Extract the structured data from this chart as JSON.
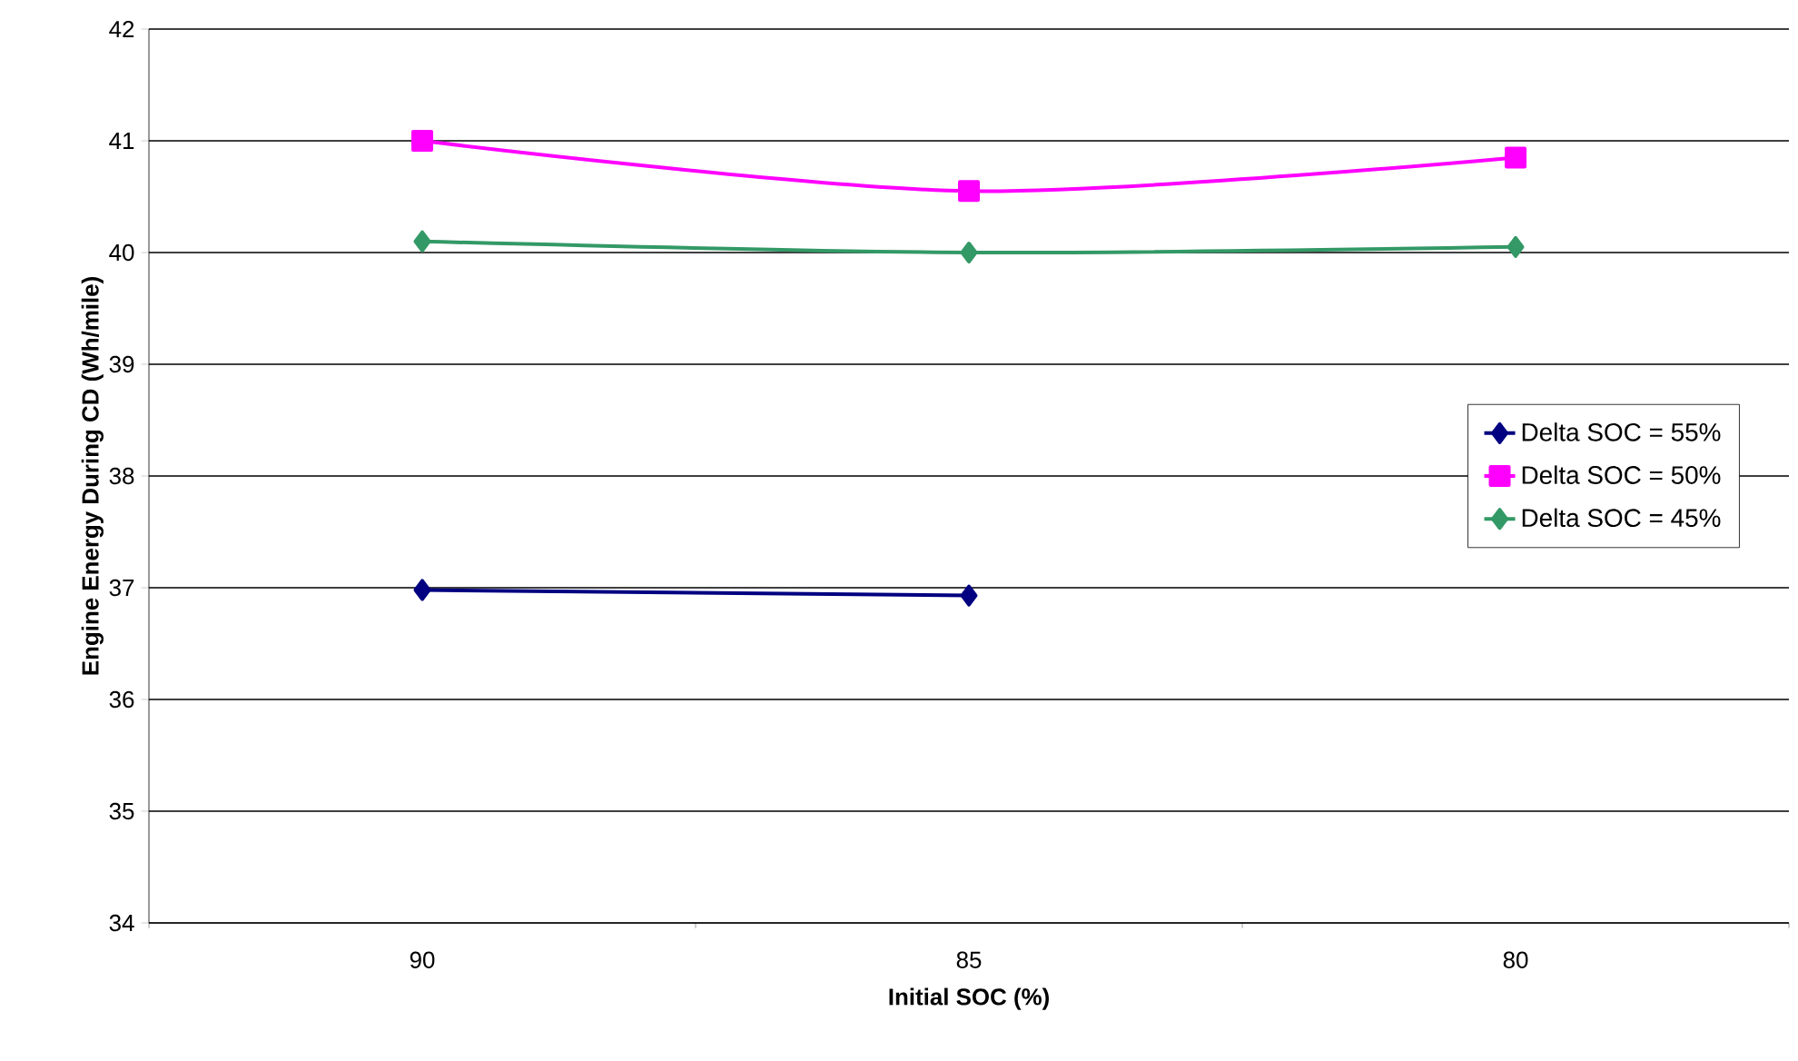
{
  "chart_data": {
    "type": "line",
    "xlabel": "Initial SOC (%)",
    "ylabel": "Engine Energy During CD (Wh/mile)",
    "categories": [
      "90",
      "85",
      "80"
    ],
    "series": [
      {
        "name": "Delta SOC = 55%",
        "color": "#000080",
        "marker": "diamond",
        "values": [
          36.98,
          36.93,
          null
        ]
      },
      {
        "name": "Delta SOC = 50%",
        "color": "#ff00ff",
        "marker": "square",
        "values": [
          41.0,
          40.55,
          40.85
        ]
      },
      {
        "name": "Delta SOC = 45%",
        "color": "#339966",
        "marker": "diamond",
        "values": [
          40.1,
          40.0,
          40.05
        ]
      }
    ],
    "ylim": [
      34,
      42
    ],
    "yticks": [
      34,
      35,
      36,
      37,
      38,
      39,
      40,
      41,
      42
    ],
    "grid": "y",
    "legend": "right",
    "line_style": "solid"
  }
}
